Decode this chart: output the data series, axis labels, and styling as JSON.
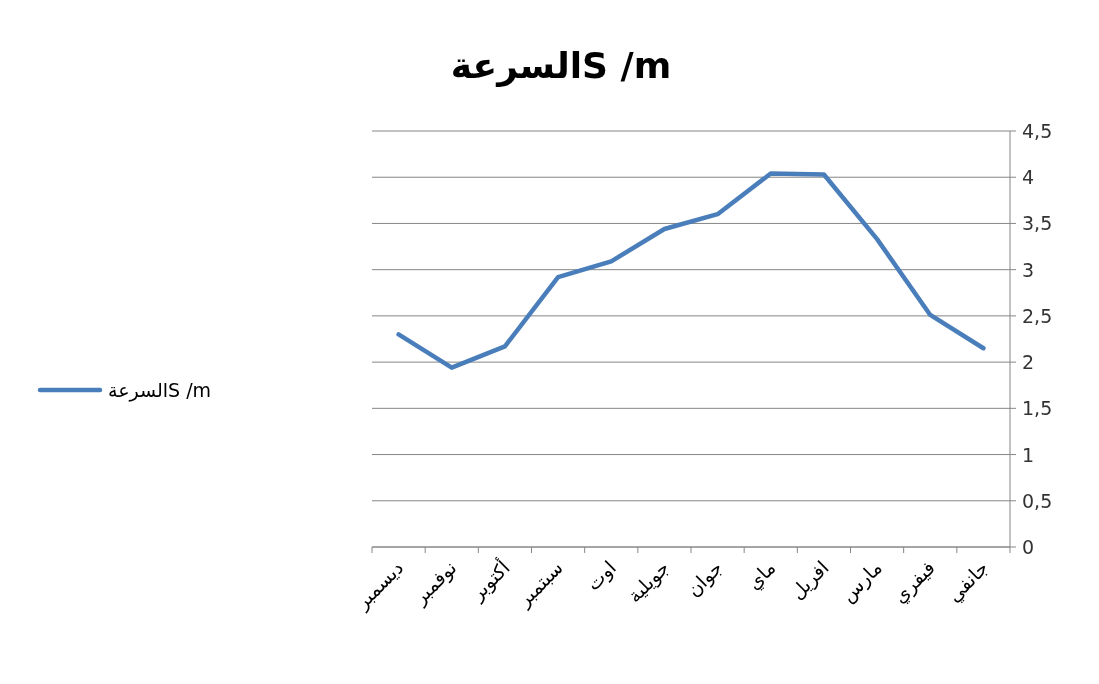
{
  "chart_data": {
    "type": "line",
    "title": "السرعةS /m",
    "categories": [
      "ديسمبر",
      "نوفمبر",
      "أكتوبر",
      "سبتمبر",
      "اوت",
      "جويلية",
      "جوان",
      "ماي",
      "افريل",
      "مارس",
      "فيفري",
      "جانفي"
    ],
    "series": [
      {
        "name": "السرعةS /m",
        "color": "#4a7ebb",
        "values": [
          2.3,
          1.94,
          2.17,
          2.92,
          3.09,
          3.44,
          3.6,
          4.04,
          4.03,
          3.33,
          2.51,
          2.15
        ]
      }
    ],
    "ylim": [
      0,
      4.5
    ],
    "yticks": [
      0,
      {
        "value": 0.5,
        "label": "0,5"
      },
      1,
      {
        "value": 1.5,
        "label": "1,5"
      },
      2,
      {
        "value": 2.5,
        "label": "2,5"
      },
      3,
      {
        "value": 3.5,
        "label": "3,5"
      },
      4,
      {
        "value": 4.5,
        "label": "4,5"
      }
    ],
    "grid": "y",
    "legend": "left",
    "marker": "none",
    "line_style": "solid"
  }
}
